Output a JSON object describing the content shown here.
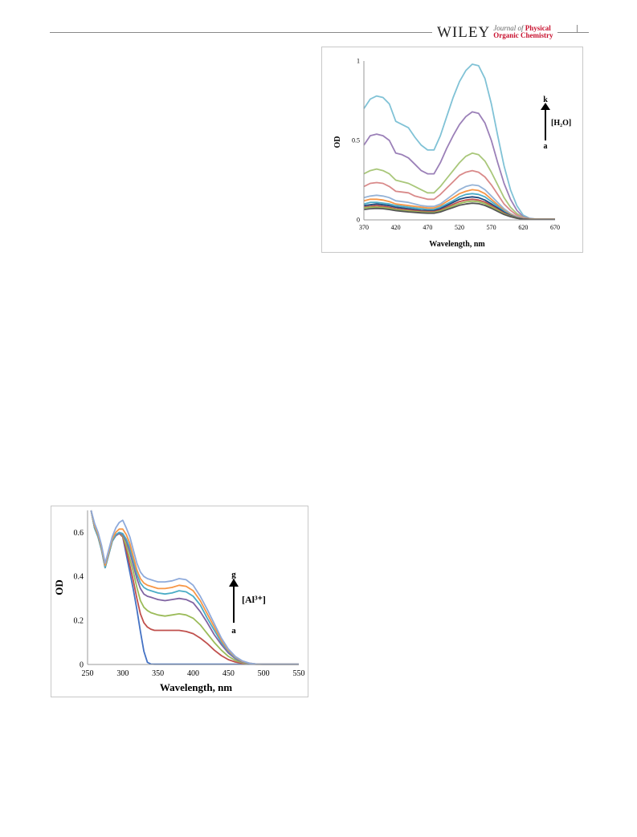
{
  "header": {
    "publisher": "WILEY",
    "journal_line1_prefix": "Journal of",
    "journal_line1_emph": "Physical",
    "journal_line2": "Organic Chemistry"
  },
  "figure1": {
    "annotation": {
      "top": "k",
      "bottom": "a",
      "label": "[H₂O]"
    },
    "chart_data": {
      "type": "line",
      "xlabel": "Wavelength, nm",
      "ylabel": "OD",
      "xlim": [
        370,
        670
      ],
      "ylim": [
        0,
        1
      ],
      "xticks": [
        370,
        420,
        470,
        520,
        570,
        620,
        670
      ],
      "yticks": [
        0,
        0.5,
        1
      ],
      "ytick_labels": [
        "0",
        "0.5",
        "1"
      ],
      "grid": false,
      "x": [
        370,
        380,
        390,
        400,
        410,
        420,
        430,
        440,
        450,
        460,
        470,
        480,
        490,
        500,
        510,
        520,
        530,
        540,
        550,
        560,
        570,
        580,
        590,
        600,
        610,
        620,
        630,
        640,
        650,
        660,
        670
      ],
      "series": [
        {
          "color": "#80c2d6",
          "values": [
            0.7,
            0.76,
            0.78,
            0.77,
            0.73,
            0.62,
            0.6,
            0.58,
            0.52,
            0.47,
            0.44,
            0.44,
            0.53,
            0.65,
            0.77,
            0.87,
            0.94,
            0.98,
            0.97,
            0.89,
            0.73,
            0.53,
            0.34,
            0.19,
            0.09,
            0.03,
            0.01,
            0.005,
            0.005,
            0.005,
            0.005
          ]
        },
        {
          "color": "#9b80b8",
          "values": [
            0.47,
            0.53,
            0.54,
            0.53,
            0.5,
            0.42,
            0.41,
            0.39,
            0.35,
            0.31,
            0.29,
            0.29,
            0.36,
            0.45,
            0.53,
            0.6,
            0.65,
            0.68,
            0.67,
            0.61,
            0.5,
            0.36,
            0.23,
            0.13,
            0.06,
            0.02,
            0.008,
            0.005,
            0.005,
            0.005,
            0.005
          ]
        },
        {
          "color": "#a9c77a",
          "values": [
            0.29,
            0.31,
            0.32,
            0.31,
            0.29,
            0.25,
            0.24,
            0.23,
            0.21,
            0.19,
            0.17,
            0.17,
            0.21,
            0.26,
            0.31,
            0.36,
            0.4,
            0.42,
            0.41,
            0.37,
            0.3,
            0.22,
            0.14,
            0.08,
            0.04,
            0.015,
            0.006,
            0.004,
            0.004,
            0.004,
            0.004
          ]
        },
        {
          "color": "#d98a8a",
          "values": [
            0.21,
            0.23,
            0.235,
            0.23,
            0.21,
            0.18,
            0.175,
            0.17,
            0.15,
            0.14,
            0.13,
            0.13,
            0.16,
            0.2,
            0.24,
            0.28,
            0.3,
            0.31,
            0.3,
            0.27,
            0.22,
            0.16,
            0.1,
            0.06,
            0.03,
            0.012,
            0.005,
            0.004,
            0.004,
            0.004,
            0.004
          ]
        },
        {
          "color": "#95b3d7",
          "values": [
            0.14,
            0.15,
            0.155,
            0.15,
            0.14,
            0.12,
            0.115,
            0.11,
            0.1,
            0.09,
            0.085,
            0.085,
            0.1,
            0.13,
            0.16,
            0.19,
            0.21,
            0.22,
            0.215,
            0.19,
            0.15,
            0.11,
            0.07,
            0.04,
            0.02,
            0.008,
            0.004,
            0.003,
            0.003,
            0.003,
            0.003
          ]
        },
        {
          "color": "#f79646",
          "values": [
            0.12,
            0.13,
            0.13,
            0.125,
            0.115,
            0.1,
            0.095,
            0.09,
            0.085,
            0.08,
            0.075,
            0.075,
            0.09,
            0.115,
            0.14,
            0.165,
            0.18,
            0.19,
            0.185,
            0.165,
            0.13,
            0.095,
            0.06,
            0.035,
            0.017,
            0.007,
            0.004,
            0.003,
            0.003,
            0.003,
            0.003
          ]
        },
        {
          "color": "#4bacc6",
          "values": [
            0.1,
            0.11,
            0.11,
            0.105,
            0.1,
            0.09,
            0.085,
            0.08,
            0.075,
            0.07,
            0.065,
            0.065,
            0.08,
            0.1,
            0.12,
            0.145,
            0.16,
            0.165,
            0.16,
            0.145,
            0.115,
            0.085,
            0.055,
            0.03,
            0.015,
            0.006,
            0.003,
            0.003,
            0.003,
            0.003,
            0.003
          ]
        },
        {
          "color": "#1f497d",
          "values": [
            0.09,
            0.095,
            0.1,
            0.095,
            0.09,
            0.08,
            0.075,
            0.07,
            0.065,
            0.06,
            0.058,
            0.058,
            0.07,
            0.09,
            0.11,
            0.13,
            0.14,
            0.145,
            0.14,
            0.125,
            0.1,
            0.075,
            0.048,
            0.027,
            0.013,
            0.005,
            0.003,
            0.002,
            0.002,
            0.002,
            0.002
          ]
        },
        {
          "color": "#c0504d",
          "values": [
            0.08,
            0.085,
            0.09,
            0.085,
            0.08,
            0.07,
            0.066,
            0.062,
            0.058,
            0.054,
            0.052,
            0.052,
            0.062,
            0.08,
            0.098,
            0.115,
            0.125,
            0.13,
            0.125,
            0.112,
            0.09,
            0.066,
            0.042,
            0.024,
            0.012,
            0.005,
            0.003,
            0.002,
            0.002,
            0.002,
            0.002
          ]
        },
        {
          "color": "#9bbb59",
          "values": [
            0.075,
            0.08,
            0.08,
            0.078,
            0.072,
            0.064,
            0.06,
            0.056,
            0.052,
            0.049,
            0.047,
            0.047,
            0.056,
            0.072,
            0.088,
            0.103,
            0.113,
            0.118,
            0.114,
            0.102,
            0.082,
            0.06,
            0.038,
            0.022,
            0.011,
            0.004,
            0.002,
            0.002,
            0.002,
            0.002,
            0.002
          ]
        },
        {
          "color": "#555555",
          "values": [
            0.065,
            0.07,
            0.072,
            0.07,
            0.065,
            0.058,
            0.054,
            0.05,
            0.047,
            0.044,
            0.042,
            0.042,
            0.05,
            0.064,
            0.078,
            0.092,
            0.1,
            0.105,
            0.102,
            0.091,
            0.073,
            0.053,
            0.034,
            0.02,
            0.01,
            0.004,
            0.002,
            0.002,
            0.002,
            0.002,
            0.002
          ]
        }
      ]
    }
  },
  "figure2": {
    "annotation": {
      "top": "g",
      "bottom": "a",
      "label": "[Al³⁺]"
    },
    "chart_data": {
      "type": "line",
      "xlabel": "Wavelength, nm",
      "ylabel": "OD",
      "xlim": [
        250,
        550
      ],
      "ylim": [
        0,
        0.7
      ],
      "xticks": [
        250,
        300,
        350,
        400,
        450,
        500,
        550
      ],
      "yticks": [
        0,
        0.2,
        0.4,
        0.6
      ],
      "ytick_labels": [
        "0",
        "0.2",
        "0.4",
        "0.6"
      ],
      "grid": false,
      "x": [
        255,
        260,
        265,
        270,
        275,
        280,
        285,
        290,
        295,
        300,
        305,
        310,
        315,
        320,
        325,
        330,
        335,
        340,
        345,
        350,
        360,
        370,
        380,
        390,
        400,
        410,
        420,
        430,
        440,
        450,
        460,
        470,
        480,
        490,
        500,
        510,
        520,
        530,
        540,
        550
      ],
      "series": [
        {
          "color": "#4472c4",
          "values": [
            0.7,
            0.62,
            0.58,
            0.52,
            0.44,
            0.5,
            0.56,
            0.585,
            0.595,
            0.58,
            0.5,
            0.42,
            0.34,
            0.25,
            0.15,
            0.06,
            0.01,
            0.002,
            0.001,
            0.001,
            0.001,
            0.001,
            0.001,
            0.001,
            0.001,
            0.001,
            0.001,
            0.001,
            0.001,
            0.001,
            0.001,
            0.001,
            0.001,
            0.001,
            0.001,
            0.001,
            0.001,
            0.001,
            0.001,
            0.001
          ]
        },
        {
          "color": "#c0504d",
          "values": [
            0.7,
            0.62,
            0.58,
            0.52,
            0.44,
            0.5,
            0.56,
            0.585,
            0.595,
            0.58,
            0.52,
            0.45,
            0.38,
            0.3,
            0.23,
            0.19,
            0.17,
            0.16,
            0.155,
            0.155,
            0.155,
            0.155,
            0.155,
            0.15,
            0.14,
            0.12,
            0.095,
            0.065,
            0.04,
            0.022,
            0.011,
            0.005,
            0.002,
            0.001,
            0.001,
            0.001,
            0.001,
            0.001,
            0.001,
            0.001
          ]
        },
        {
          "color": "#9bbb59",
          "values": [
            0.7,
            0.62,
            0.58,
            0.52,
            0.44,
            0.5,
            0.56,
            0.585,
            0.595,
            0.585,
            0.54,
            0.48,
            0.42,
            0.35,
            0.29,
            0.26,
            0.245,
            0.235,
            0.23,
            0.225,
            0.22,
            0.225,
            0.23,
            0.225,
            0.21,
            0.18,
            0.14,
            0.1,
            0.065,
            0.037,
            0.018,
            0.008,
            0.003,
            0.001,
            0.001,
            0.001,
            0.001,
            0.001,
            0.001,
            0.001
          ]
        },
        {
          "color": "#8064a2",
          "values": [
            0.7,
            0.62,
            0.58,
            0.52,
            0.44,
            0.5,
            0.56,
            0.585,
            0.595,
            0.59,
            0.56,
            0.51,
            0.45,
            0.39,
            0.345,
            0.32,
            0.31,
            0.305,
            0.3,
            0.295,
            0.29,
            0.295,
            0.3,
            0.295,
            0.28,
            0.24,
            0.19,
            0.135,
            0.09,
            0.052,
            0.026,
            0.011,
            0.004,
            0.002,
            0.001,
            0.001,
            0.001,
            0.001,
            0.001,
            0.001
          ]
        },
        {
          "color": "#4bacc6",
          "values": [
            0.7,
            0.62,
            0.58,
            0.52,
            0.44,
            0.5,
            0.56,
            0.59,
            0.6,
            0.595,
            0.57,
            0.53,
            0.47,
            0.41,
            0.37,
            0.35,
            0.34,
            0.335,
            0.33,
            0.325,
            0.32,
            0.325,
            0.335,
            0.33,
            0.31,
            0.27,
            0.21,
            0.155,
            0.1,
            0.06,
            0.03,
            0.013,
            0.005,
            0.002,
            0.001,
            0.001,
            0.001,
            0.001,
            0.001,
            0.001
          ]
        },
        {
          "color": "#f79646",
          "values": [
            0.7,
            0.63,
            0.59,
            0.53,
            0.45,
            0.51,
            0.57,
            0.6,
            0.615,
            0.615,
            0.59,
            0.55,
            0.49,
            0.43,
            0.39,
            0.37,
            0.36,
            0.355,
            0.35,
            0.345,
            0.345,
            0.35,
            0.36,
            0.355,
            0.335,
            0.29,
            0.23,
            0.17,
            0.11,
            0.065,
            0.033,
            0.014,
            0.006,
            0.002,
            0.001,
            0.001,
            0.001,
            0.001,
            0.001,
            0.001
          ]
        },
        {
          "color": "#8eaadb",
          "values": [
            0.7,
            0.64,
            0.6,
            0.54,
            0.46,
            0.52,
            0.58,
            0.62,
            0.645,
            0.655,
            0.62,
            0.58,
            0.52,
            0.46,
            0.42,
            0.4,
            0.39,
            0.385,
            0.38,
            0.375,
            0.375,
            0.38,
            0.39,
            0.385,
            0.36,
            0.31,
            0.25,
            0.185,
            0.12,
            0.07,
            0.036,
            0.016,
            0.006,
            0.002,
            0.001,
            0.001,
            0.001,
            0.001,
            0.001,
            0.001
          ]
        }
      ]
    }
  }
}
